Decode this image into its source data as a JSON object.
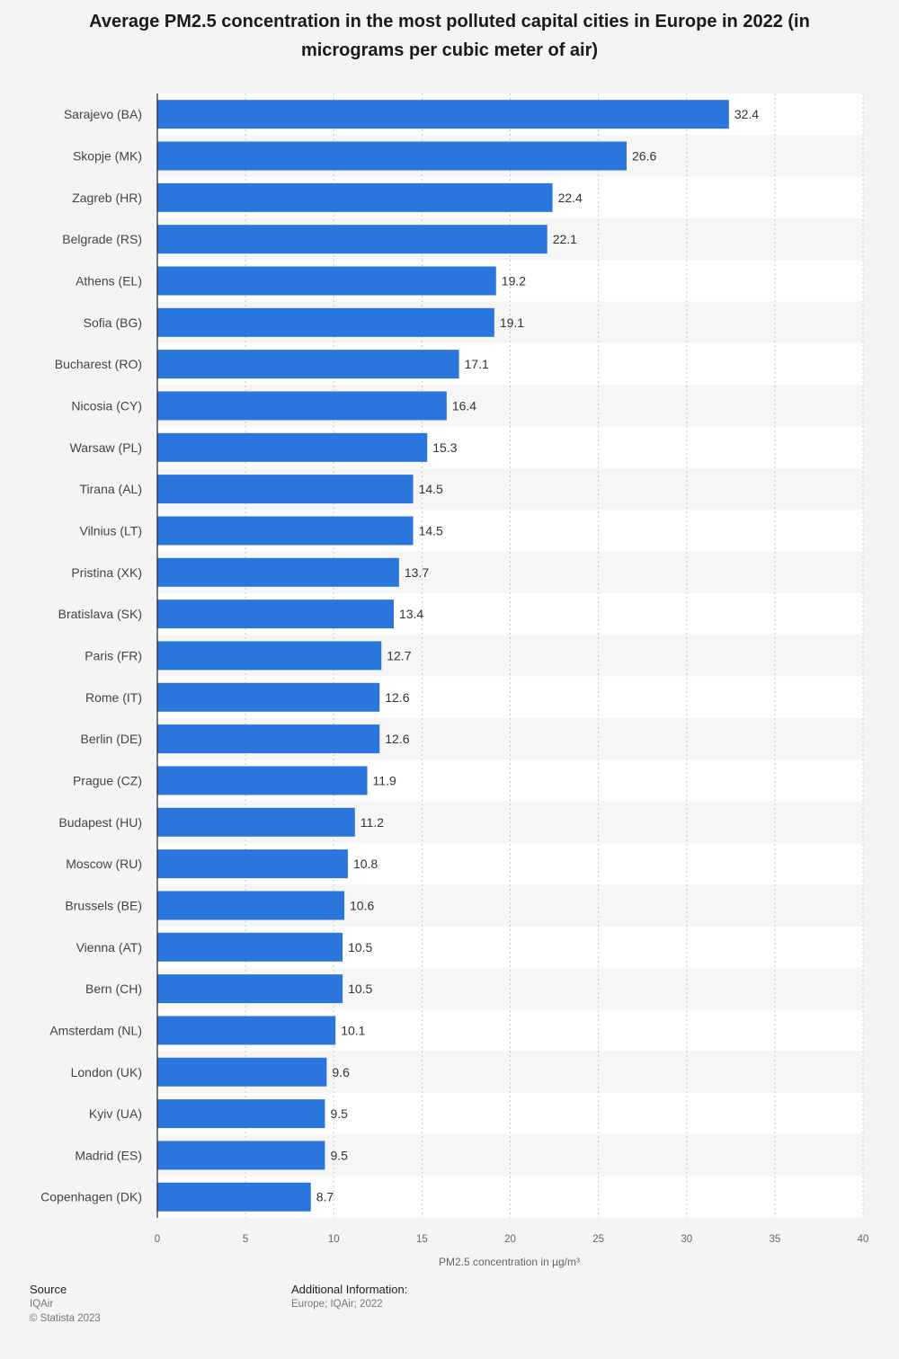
{
  "chart_data": {
    "type": "bar",
    "orientation": "horizontal",
    "title": "Average PM2.5 concentration in the most polluted capital cities in Europe in 2022 (in micrograms per cubic meter of air)",
    "xlabel": "PM2.5 concentration in µg/m³",
    "ylabel": "",
    "xlim": [
      0,
      40
    ],
    "ticks": [
      0,
      5,
      10,
      15,
      20,
      25,
      30,
      35,
      40
    ],
    "grid": true,
    "bar_color": "#2a76dd",
    "categories": [
      "Sarajevo (BA)",
      "Skopje (MK)",
      "Zagreb (HR)",
      "Belgrade (RS)",
      "Athens (EL)",
      "Sofia (BG)",
      "Bucharest (RO)",
      "Nicosia (CY)",
      "Warsaw (PL)",
      "Tirana (AL)",
      "Vilnius (LT)",
      "Pristina (XK)",
      "Bratislava (SK)",
      "Paris (FR)",
      "Rome (IT)",
      "Berlin (DE)",
      "Prague (CZ)",
      "Budapest (HU)",
      "Moscow (RU)",
      "Brussels (BE)",
      "Vienna (AT)",
      "Bern (CH)",
      "Amsterdam (NL)",
      "London (UK)",
      "Kyiv (UA)",
      "Madrid (ES)",
      "Copenhagen (DK)"
    ],
    "values": [
      32.4,
      26.6,
      22.4,
      22.1,
      19.2,
      19.1,
      17.1,
      16.4,
      15.3,
      14.5,
      14.5,
      13.7,
      13.4,
      12.7,
      12.6,
      12.6,
      11.9,
      11.2,
      10.8,
      10.6,
      10.5,
      10.5,
      10.1,
      9.6,
      9.5,
      9.5,
      8.7
    ]
  },
  "footer": {
    "source_label": "Source",
    "source_value": "IQAir",
    "copyright": "© Statista 2023",
    "additional_label": "Additional Information:",
    "additional_value": "Europe; IQAir; 2022"
  }
}
